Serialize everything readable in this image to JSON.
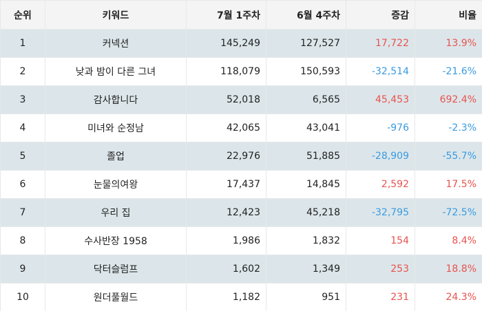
{
  "table": {
    "header": [
      "순위",
      "키워드",
      "7월 1주차",
      "6월 4주차",
      "증감",
      "비율"
    ],
    "rows": [
      [
        "1",
        "커넥션",
        "145,249",
        "127,527",
        "17,722",
        "13.9%"
      ],
      [
        "2",
        "낮과 밤이 다른 그녀",
        "118,079",
        "150,593",
        "-32,514",
        "-21.6%"
      ],
      [
        "3",
        "감사합니다",
        "52,018",
        "6,565",
        "45,453",
        "692.4%"
      ],
      [
        "4",
        "미녀와 순정남",
        "42,065",
        "43,041",
        "-976",
        "-2.3%"
      ],
      [
        "5",
        "졸업",
        "22,976",
        "51,885",
        "-28,909",
        "-55.7%"
      ],
      [
        "6",
        "눈물의여왕",
        "17,437",
        "14,845",
        "2,592",
        "17.5%"
      ],
      [
        "7",
        "우리 집",
        "12,423",
        "45,218",
        "-32,795",
        "-72.5%"
      ],
      [
        "8",
        "수사반장 1958",
        "1,986",
        "1,832",
        "154",
        "8.4%"
      ],
      [
        "9",
        "닥터슬럼프",
        "1,602",
        "1,349",
        "253",
        "18.8%"
      ],
      [
        "10",
        "원더풀월드",
        "1,182",
        "951",
        "231",
        "24.3%"
      ]
    ],
    "positive_color": "#e8524f",
    "negative_color": "#3a9ae0",
    "stripe_color": "#dce6ea"
  }
}
